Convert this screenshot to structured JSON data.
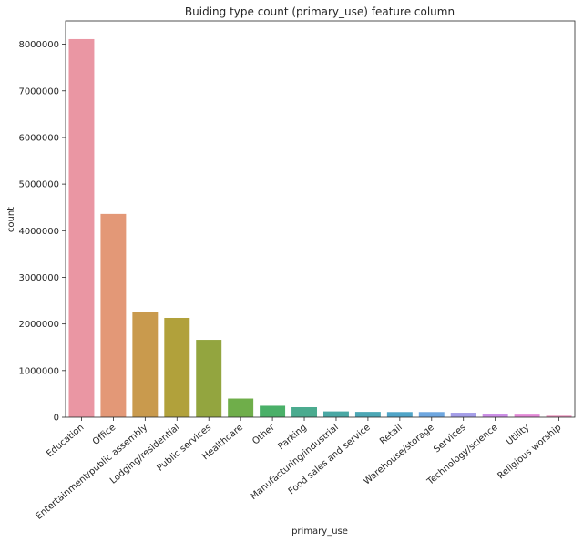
{
  "chart_data": {
    "type": "bar",
    "title": "Buiding type count (primary_use) feature column",
    "xlabel": "primary_use",
    "ylabel": "count",
    "ylim": [
      0,
      8500000
    ],
    "yticks": [
      0,
      1000000,
      2000000,
      3000000,
      4000000,
      5000000,
      6000000,
      7000000,
      8000000
    ],
    "ytick_labels": [
      "0",
      "1000000",
      "2000000",
      "3000000",
      "4000000",
      "5000000",
      "6000000",
      "7000000",
      "8000000"
    ],
    "grid": false,
    "categories": [
      "Education",
      "Office",
      "Entertainment/public assembly",
      "Lodging/residential",
      "Public services",
      "Healthcare",
      "Other",
      "Parking",
      "Manufacturing/industrial",
      "Food sales and service",
      "Retail",
      "Warehouse/storage",
      "Services",
      "Technology/science",
      "Utility",
      "Religious worship"
    ],
    "values": [
      8110000,
      4360000,
      2250000,
      2130000,
      1660000,
      400000,
      245000,
      215000,
      125000,
      115000,
      112000,
      112000,
      97000,
      77000,
      56000,
      32000
    ],
    "colors": [
      "#ea96a3",
      "#e39877",
      "#c99a4d",
      "#b1a13b",
      "#93a53f",
      "#6fae4a",
      "#4ab068",
      "#4bab8f",
      "#4aa8a4",
      "#4ca7b5",
      "#50a5c8",
      "#6ea7e0",
      "#a49ee8",
      "#cc8fe6",
      "#e389d6",
      "#e78db8"
    ]
  }
}
